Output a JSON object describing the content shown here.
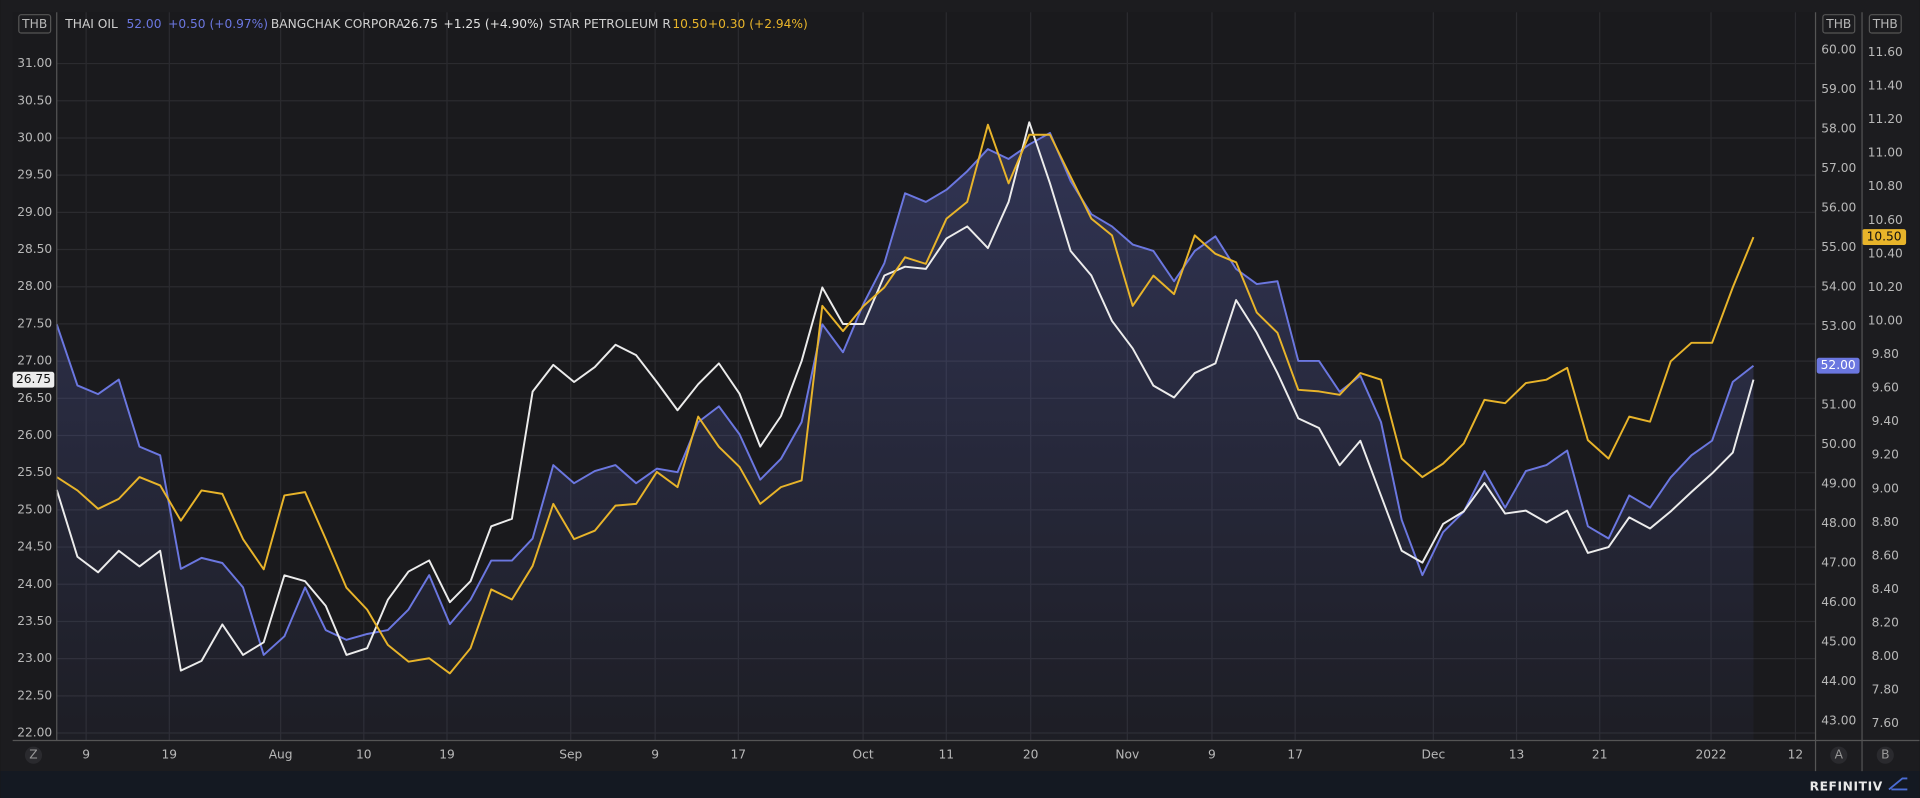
{
  "chart_data": {
    "type": "line",
    "ylabel": "THB",
    "y2label": "THB",
    "y3label": "THB",
    "x": [
      0,
      1,
      2,
      3,
      4,
      5,
      6,
      7,
      8,
      9,
      10,
      11,
      12,
      13,
      14,
      15,
      16,
      17,
      18,
      19,
      20,
      21,
      22,
      23,
      24,
      25,
      26,
      27,
      28,
      29,
      30,
      31,
      32,
      33,
      34,
      35,
      36,
      37,
      38,
      39,
      40,
      41,
      42,
      43,
      44,
      45,
      46,
      47,
      48,
      49,
      50,
      51,
      52,
      53,
      54,
      55,
      56,
      57,
      58,
      59,
      60,
      61,
      62,
      63,
      64,
      65,
      66,
      67,
      68,
      69,
      70,
      71,
      72,
      73,
      74,
      75,
      76,
      77,
      78,
      79,
      80,
      81,
      82
    ],
    "xlim": [
      -2.13,
      85.0
    ],
    "xticks": [
      {
        "value": 1.42,
        "label": "9"
      },
      {
        "value": 5.44,
        "label": "19"
      },
      {
        "value": 10.82,
        "label": "Aug"
      },
      {
        "value": 14.84,
        "label": "10"
      },
      {
        "value": 18.86,
        "label": "19"
      },
      {
        "value": 24.84,
        "label": "Sep"
      },
      {
        "value": 28.92,
        "label": "9"
      },
      {
        "value": 32.94,
        "label": "17"
      },
      {
        "value": 38.97,
        "label": "Oct"
      },
      {
        "value": 42.99,
        "label": "11"
      },
      {
        "value": 47.07,
        "label": "20"
      },
      {
        "value": 51.74,
        "label": "Nov"
      },
      {
        "value": 55.83,
        "label": "9"
      },
      {
        "value": 59.85,
        "label": "17"
      },
      {
        "value": 66.53,
        "label": "Dec"
      },
      {
        "value": 70.55,
        "label": "13"
      },
      {
        "value": 74.57,
        "label": "21"
      },
      {
        "value": 79.95,
        "label": "2022"
      },
      {
        "value": 84.03,
        "label": "12"
      }
    ],
    "ylim": [
      21.9,
      31.69
    ],
    "yticks": [
      {
        "value": 22,
        "label": "22.00"
      },
      {
        "value": 22.5,
        "label": "22.50"
      },
      {
        "value": 23,
        "label": "23.00"
      },
      {
        "value": 23.5,
        "label": "23.50"
      },
      {
        "value": 24,
        "label": "24.00"
      },
      {
        "value": 24.5,
        "label": "24.50"
      },
      {
        "value": 25,
        "label": "25.00"
      },
      {
        "value": 25.5,
        "label": "25.50"
      },
      {
        "value": 26,
        "label": "26.00"
      },
      {
        "value": 26.5,
        "label": "26.50"
      },
      {
        "value": 27,
        "label": "27.00"
      },
      {
        "value": 27.5,
        "label": "27.50"
      },
      {
        "value": 28,
        "label": "28.00"
      },
      {
        "value": 28.5,
        "label": "28.50"
      },
      {
        "value": 29,
        "label": "29.00"
      },
      {
        "value": 29.5,
        "label": "29.50"
      },
      {
        "value": 30,
        "label": "30.00"
      },
      {
        "value": 30.5,
        "label": "30.50"
      },
      {
        "value": 31,
        "label": "31.00"
      }
    ],
    "y2lim": [
      42.5,
      60.96
    ],
    "y2ticks": [
      {
        "value": 43,
        "label": "43.00"
      },
      {
        "value": 44,
        "label": "44.00"
      },
      {
        "value": 45,
        "label": "45.00"
      },
      {
        "value": 46,
        "label": "46.00"
      },
      {
        "value": 47,
        "label": "47.00"
      },
      {
        "value": 48,
        "label": "48.00"
      },
      {
        "value": 49,
        "label": "49.00"
      },
      {
        "value": 50,
        "label": "50.00"
      },
      {
        "value": 51,
        "label": "51.00"
      },
      {
        "value": 52,
        "label": "52.00"
      },
      {
        "value": 53,
        "label": "53.00"
      },
      {
        "value": 54,
        "label": "54.00"
      },
      {
        "value": 55,
        "label": "55.00"
      },
      {
        "value": 56,
        "label": "56.00"
      },
      {
        "value": 57,
        "label": "57.00"
      },
      {
        "value": 58,
        "label": "58.00"
      },
      {
        "value": 59,
        "label": "59.00"
      },
      {
        "value": 60,
        "label": "60.00"
      }
    ],
    "y3lim": [
      7.5,
      11.84
    ],
    "y3ticks": [
      {
        "value": 7.6,
        "label": "7.60"
      },
      {
        "value": 7.8,
        "label": "7.80"
      },
      {
        "value": 8,
        "label": "8.00"
      },
      {
        "value": 8.2,
        "label": "8.20"
      },
      {
        "value": 8.4,
        "label": "8.40"
      },
      {
        "value": 8.6,
        "label": "8.60"
      },
      {
        "value": 8.8,
        "label": "8.80"
      },
      {
        "value": 9,
        "label": "9.00"
      },
      {
        "value": 9.2,
        "label": "9.20"
      },
      {
        "value": 9.4,
        "label": "9.40"
      },
      {
        "value": 9.6,
        "label": "9.60"
      },
      {
        "value": 9.8,
        "label": "9.80"
      },
      {
        "value": 10,
        "label": "10.00"
      },
      {
        "value": 10.2,
        "label": "10.20"
      },
      {
        "value": 10.4,
        "label": "10.40"
      },
      {
        "value": 10.6,
        "label": "10.60"
      },
      {
        "value": 10.8,
        "label": "10.80"
      },
      {
        "value": 11,
        "label": "11.00"
      },
      {
        "value": 11.2,
        "label": "11.20"
      },
      {
        "value": 11.4,
        "label": "11.40"
      },
      {
        "value": 11.6,
        "label": "11.60"
      }
    ],
    "grid": true,
    "series": [
      {
        "name": "THAI OIL",
        "color": "#6b77e0",
        "axis": "y2",
        "area": true,
        "last_label": "52.00",
        "change": "+0.50 (+0.97%)",
        "values": [
          53.05,
          51.5,
          51.28,
          51.65,
          49.95,
          49.73,
          46.85,
          47.13,
          47.0,
          46.38,
          44.67,
          45.14,
          46.38,
          45.3,
          45.05,
          45.2,
          45.3,
          45.82,
          46.69,
          45.45,
          46.07,
          47.06,
          47.06,
          47.62,
          49.48,
          49.02,
          49.33,
          49.48,
          49.02,
          49.39,
          49.3,
          50.57,
          50.97,
          50.26,
          49.11,
          49.64,
          50.57,
          53.05,
          52.34,
          53.58,
          54.6,
          56.37,
          56.15,
          56.46,
          56.93,
          57.49,
          57.24,
          57.61,
          57.9,
          56.68,
          55.84,
          55.53,
          55.07,
          54.91,
          54.14,
          54.91,
          55.28,
          54.45,
          54.07,
          54.14,
          52.12,
          52.12,
          51.34,
          51.75,
          50.57,
          48.09,
          46.69,
          47.78,
          48.3,
          49.33,
          48.4,
          49.33,
          49.48,
          49.85,
          47.93,
          47.62,
          48.71,
          48.4,
          49.17,
          49.73,
          50.1,
          51.59,
          52.0
        ]
      },
      {
        "name": "BANGCHAK CORPORA",
        "color": "#ececec",
        "axis": "y",
        "last_label": "26.75",
        "change": "+1.25 (+4.90%)",
        "values": [
          25.27,
          24.37,
          24.16,
          24.45,
          24.24,
          24.45,
          22.84,
          22.97,
          23.46,
          23.05,
          23.22,
          24.12,
          24.04,
          23.71,
          23.05,
          23.14,
          23.79,
          24.17,
          24.32,
          23.76,
          24.04,
          24.78,
          24.88,
          26.59,
          26.95,
          26.72,
          26.92,
          27.22,
          27.08,
          26.72,
          26.34,
          26.69,
          26.97,
          26.56,
          25.85,
          26.26,
          27.0,
          27.99,
          27.5,
          27.5,
          28.15,
          28.27,
          28.24,
          28.65,
          28.81,
          28.52,
          29.14,
          30.21,
          29.39,
          28.48,
          28.15,
          27.54,
          27.17,
          26.67,
          26.51,
          26.84,
          26.97,
          27.82,
          27.38,
          26.84,
          26.23,
          26.1,
          25.6,
          25.93,
          25.19,
          24.45,
          24.29,
          24.81,
          24.98,
          25.36,
          24.95,
          24.99,
          24.83,
          24.99,
          24.42,
          24.5,
          24.9,
          24.75,
          24.98,
          25.24,
          25.49,
          25.77,
          26.75
        ]
      },
      {
        "name": "STAR PETROLEUM R",
        "color": "#e8b42a",
        "axis": "y3",
        "last_label": "10.50",
        "change": "+0.30 (+2.94%)",
        "values": [
          9.07,
          8.99,
          8.88,
          8.94,
          9.07,
          9.02,
          8.81,
          8.99,
          8.97,
          8.7,
          8.52,
          8.96,
          8.98,
          8.7,
          8.41,
          8.28,
          8.07,
          7.97,
          7.99,
          7.9,
          8.05,
          8.4,
          8.34,
          8.54,
          8.91,
          8.7,
          8.75,
          8.9,
          8.91,
          9.1,
          9.01,
          9.43,
          9.25,
          9.13,
          8.91,
          9.01,
          9.05,
          10.09,
          9.94,
          10.09,
          10.2,
          10.38,
          10.34,
          10.61,
          10.71,
          11.17,
          10.82,
          11.11,
          11.11,
          10.86,
          10.61,
          10.51,
          10.09,
          10.27,
          10.16,
          10.51,
          10.4,
          10.35,
          10.05,
          9.93,
          9.59,
          9.58,
          9.56,
          9.69,
          9.65,
          9.18,
          9.07,
          9.15,
          9.27,
          9.53,
          9.51,
          9.63,
          9.65,
          9.72,
          9.29,
          9.18,
          9.43,
          9.4,
          9.76,
          9.87,
          9.87,
          10.2,
          10.5
        ]
      }
    ]
  },
  "ui": {
    "buttons": [
      "Z",
      "A",
      "B"
    ],
    "brand": "REFINITIV"
  }
}
